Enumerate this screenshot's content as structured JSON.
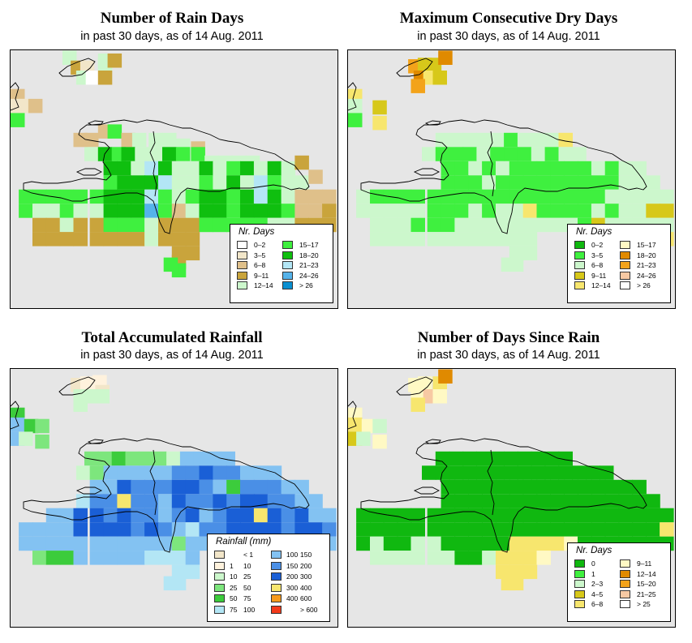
{
  "panels": [
    {
      "title": "Number of Rain Days",
      "subtitle": "in past 30 days, as of  14 Aug. 2011",
      "legend": {
        "title": "Nr. Days",
        "items": [
          {
            "label": "0–2",
            "color": "#ffffff"
          },
          {
            "label": "3–5",
            "color": "#f2e6c9"
          },
          {
            "label": "6–8",
            "color": "#dfc08a"
          },
          {
            "label": "9–11",
            "color": "#c9a43c"
          },
          {
            "label": "12–14",
            "color": "#ccf7cc"
          },
          {
            "label": "15–17",
            "color": "#3ff03f"
          },
          {
            "label": "18–20",
            "color": "#0fbf0f"
          },
          {
            "label": "21–23",
            "color": "#b3e6f5"
          },
          {
            "label": "24–26",
            "color": "#55b3ea"
          },
          {
            "label": "> 26",
            "color": "#0a8fd0"
          }
        ]
      }
    },
    {
      "title": "Maximum Consecutive Dry Days",
      "subtitle": "in past 30 days, as of  14 Aug. 2011",
      "legend": {
        "title": "Nr. Days",
        "items": [
          {
            "label": "0–2",
            "color": "#10b810"
          },
          {
            "label": "3–5",
            "color": "#3ff03f"
          },
          {
            "label": "6–8",
            "color": "#ccf7cc"
          },
          {
            "label": "9–11",
            "color": "#d7c81a"
          },
          {
            "label": "12–14",
            "color": "#f7e66e"
          },
          {
            "label": "15–17",
            "color": "#fff9c4"
          },
          {
            "label": "18–20",
            "color": "#e08a00"
          },
          {
            "label": "21–23",
            "color": "#f3a31a"
          },
          {
            "label": "24–26",
            "color": "#f7c9a3"
          },
          {
            "label": "> 26",
            "color": "#ffffff"
          }
        ]
      }
    },
    {
      "title": "Total Accumulated Rainfall",
      "subtitle": "in past 30 days, as of  14 Aug. 2011",
      "legend": {
        "title": "Rainfall (mm)",
        "items": [
          {
            "lo": "",
            "hi": "< 1",
            "color": "#f2e6c9"
          },
          {
            "lo": "1",
            "hi": "10",
            "color": "#fff2dd"
          },
          {
            "lo": "10",
            "hi": "25",
            "color": "#ccf7cc"
          },
          {
            "lo": "25",
            "hi": "50",
            "color": "#7de67d"
          },
          {
            "lo": "50",
            "hi": "75",
            "color": "#3ccc3c"
          },
          {
            "lo": "75",
            "hi": "100",
            "color": "#b3e6f5"
          },
          {
            "lo": "100",
            "hi": "150",
            "color": "#83c2f2"
          },
          {
            "lo": "150",
            "hi": "200",
            "color": "#4a8fe6"
          },
          {
            "lo": "200",
            "hi": "300",
            "color": "#1a5fd6"
          },
          {
            "lo": "300",
            "hi": "400",
            "color": "#f7e66e"
          },
          {
            "lo": "400",
            "hi": "600",
            "color": "#f79a1a"
          },
          {
            "lo": "",
            "hi": "> 600",
            "color": "#f23a1a"
          }
        ]
      }
    },
    {
      "title": "Number of Days Since Rain",
      "subtitle": "in past 30 days, as of  14 Aug. 2011",
      "legend": {
        "title": "Nr. Days",
        "items": [
          {
            "label": "0",
            "color": "#10b810"
          },
          {
            "label": "1",
            "color": "#3ff03f"
          },
          {
            "label": "2–3",
            "color": "#ccf7cc"
          },
          {
            "label": "4–5",
            "color": "#d7c81a"
          },
          {
            "label": "6–8",
            "color": "#f7e66e"
          },
          {
            "label": "9–11",
            "color": "#fff9c4"
          },
          {
            "label": "12–14",
            "color": "#e08a00"
          },
          {
            "label": "15–20",
            "color": "#f3a31a"
          },
          {
            "label": "21–25",
            "color": "#f7c9a3"
          },
          {
            "label": "> 25",
            "color": "#ffffff"
          }
        ]
      }
    }
  ]
}
